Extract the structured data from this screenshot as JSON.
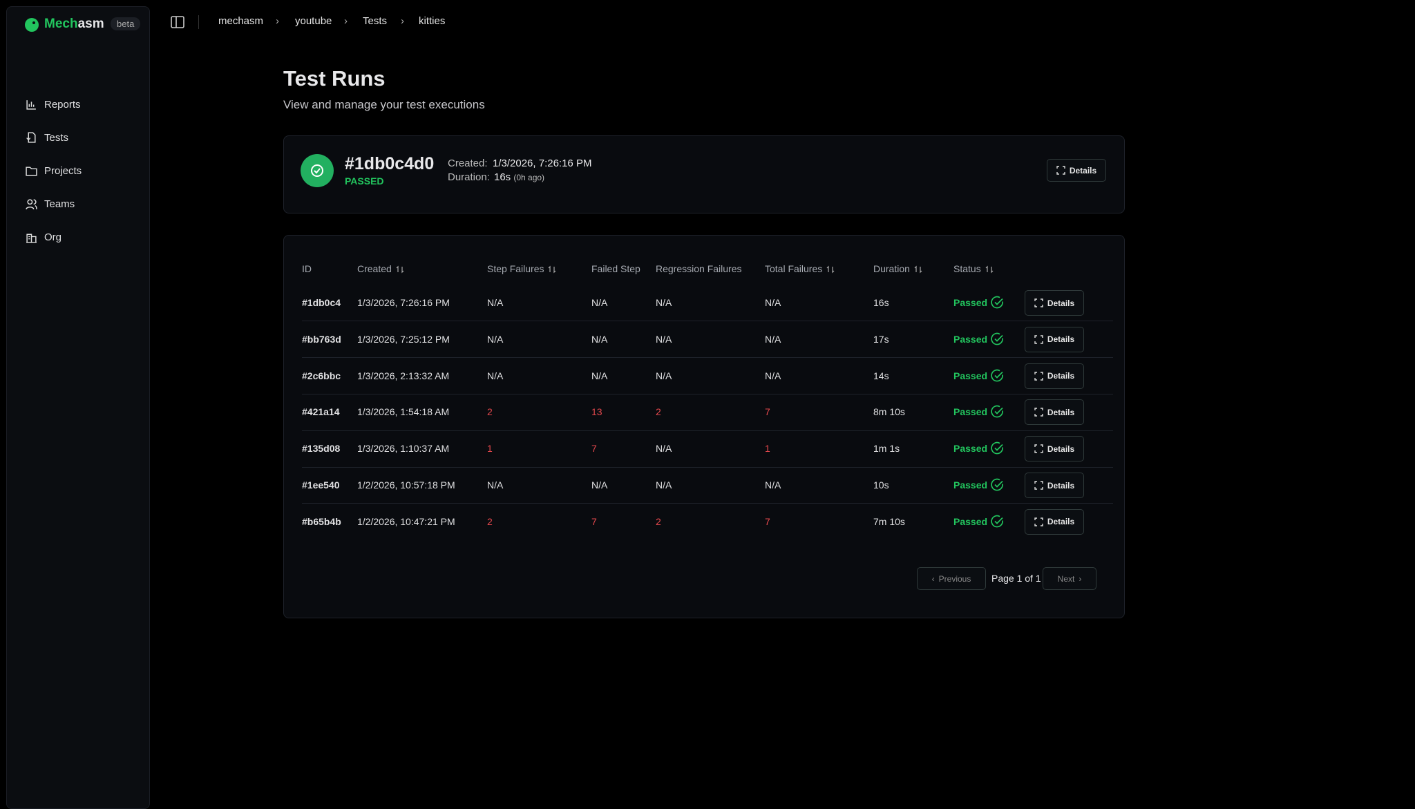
{
  "app": {
    "name_a": "Mech",
    "name_b": "asm",
    "badge": "beta"
  },
  "breadcrumbs": [
    "mechasm",
    "youtube",
    "Tests",
    "kitties"
  ],
  "nav": [
    "Reports",
    "Tests",
    "Projects",
    "Teams",
    "Org"
  ],
  "page": {
    "title": "Test Runs",
    "subtitle": "View and manage your test executions"
  },
  "summary": {
    "id": "#1db0c4d0",
    "status": "PASSED",
    "created_label": "Created:",
    "created": "1/3/2026, 7:26:16 PM",
    "duration_label": "Duration:",
    "duration": "16s",
    "ago": "(0h ago)",
    "button": "Details"
  },
  "table": {
    "columns": [
      {
        "label": "ID",
        "sortable": false
      },
      {
        "label": "Created",
        "sortable": true
      },
      {
        "label": "Step Failures",
        "sortable": true
      },
      {
        "label": "Failed Step",
        "sortable": false
      },
      {
        "label": "Regression Failures",
        "sortable": false
      },
      {
        "label": "Total Failures",
        "sortable": true
      },
      {
        "label": "Duration",
        "sortable": true
      },
      {
        "label": "Status",
        "sortable": true
      }
    ],
    "details_label": "Details",
    "rows": [
      [
        "#1db0c4",
        "1/3/2026, 7:26:16 PM",
        "N/A",
        "N/A",
        "N/A",
        "N/A",
        "16s",
        "Passed"
      ],
      [
        "#bb763d",
        "1/3/2026, 7:25:12 PM",
        "N/A",
        "N/A",
        "N/A",
        "N/A",
        "17s",
        "Passed"
      ],
      [
        "#2c6bbc",
        "1/3/2026, 2:13:32 AM",
        "N/A",
        "N/A",
        "N/A",
        "N/A",
        "14s",
        "Passed"
      ],
      [
        "#421a14",
        "1/3/2026, 1:54:18 AM",
        2,
        13,
        2,
        7,
        "8m 10s",
        "Passed"
      ],
      [
        "#135d08",
        "1/3/2026, 1:10:37 AM",
        1,
        7,
        "N/A",
        1,
        "1m 1s",
        "Passed"
      ],
      [
        "#1ee540",
        "1/2/2026, 10:57:18 PM",
        "N/A",
        "N/A",
        "N/A",
        "N/A",
        "10s",
        "Passed"
      ],
      [
        "#b65b4b",
        "1/2/2026, 10:47:21 PM",
        2,
        7,
        2,
        7,
        "7m 10s",
        "Passed"
      ]
    ]
  },
  "pagination": {
    "previous": "Previous",
    "page": "Page 1 of 1",
    "next": "Next"
  }
}
